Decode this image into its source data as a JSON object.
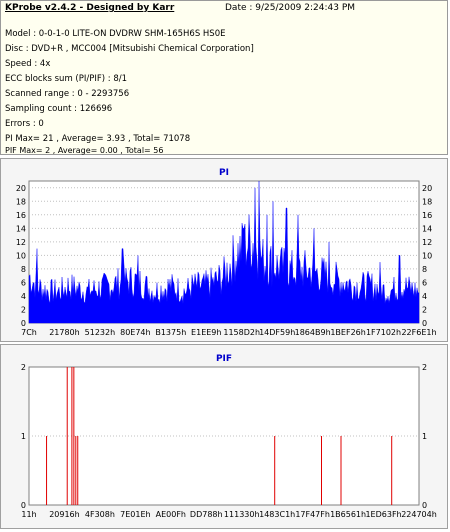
{
  "info": {
    "title": "KProbe v2.4.2 - Designed by Karr",
    "date": "Date : 9/25/2009 2:24:43 PM",
    "lines": [
      "Model : 0-0-1-0 LITE-ON DVDRW SHM-165H6S HS0E",
      "Disc : DVD+R , MCC004 [Mitsubishi Chemical Corporation]",
      "Speed : 4x",
      "ECC blocks sum (PI/PIF) : 8/1",
      "Scanned range : 0 - 2293756",
      "Sampling count : 126696",
      "Errors : 0",
      "PI Max= 21 , Average= 3.93 , Total= 71078",
      "PIF Max= 2 , Average= 0.00 , Total= 56"
    ]
  },
  "colors": {
    "pi_fill": "#0000ff",
    "pif_line": "#e00000",
    "title": "#0000cc"
  },
  "chart_data": [
    {
      "type": "area",
      "title": "PI",
      "ylim": [
        0,
        21
      ],
      "yticks": [
        0,
        2,
        4,
        6,
        8,
        10,
        12,
        14,
        16,
        18,
        20
      ],
      "xticks": [
        "7Ch",
        "21780h",
        "51232h",
        "80E74h",
        "B1375h",
        "E1EE9h",
        "1158D2h",
        "14DF59h",
        "1864B9h",
        "1BEF26h",
        "1F7102h",
        "22F6E1h"
      ],
      "profile": [
        [
          0,
          9
        ],
        [
          0.02,
          7
        ],
        [
          0.05,
          6
        ],
        [
          0.08,
          6
        ],
        [
          0.1,
          7
        ],
        [
          0.15,
          6
        ],
        [
          0.2,
          7
        ],
        [
          0.25,
          8
        ],
        [
          0.28,
          8
        ],
        [
          0.32,
          6
        ],
        [
          0.36,
          7
        ],
        [
          0.4,
          6
        ],
        [
          0.42,
          7
        ],
        [
          0.45,
          7
        ],
        [
          0.48,
          8
        ],
        [
          0.5,
          9
        ],
        [
          0.53,
          13
        ],
        [
          0.57,
          16
        ],
        [
          0.6,
          12
        ],
        [
          0.63,
          11
        ],
        [
          0.67,
          10
        ],
        [
          0.72,
          10
        ],
        [
          0.76,
          9
        ],
        [
          0.8,
          8
        ],
        [
          0.84,
          7
        ],
        [
          0.88,
          7
        ],
        [
          0.92,
          6
        ],
        [
          0.96,
          7
        ],
        [
          1.0,
          6
        ]
      ],
      "peaks": [
        [
          0.02,
          11
        ],
        [
          0.24,
          11
        ],
        [
          0.28,
          10
        ],
        [
          0.55,
          14
        ],
        [
          0.58,
          20
        ],
        [
          0.59,
          21
        ],
        [
          0.61,
          16
        ],
        [
          0.625,
          18
        ],
        [
          0.66,
          17
        ],
        [
          0.69,
          16
        ],
        [
          0.73,
          14
        ],
        [
          0.77,
          12
        ],
        [
          0.9,
          9
        ],
        [
          0.95,
          10
        ]
      ]
    },
    {
      "type": "bar",
      "title": "PIF",
      "ylim": [
        0,
        2
      ],
      "yticks": [
        0,
        1,
        2
      ],
      "xticks": [
        "11h",
        "20916h",
        "4F308h",
        "7E01Eh",
        "AE00Fh",
        "DD788h",
        "111330h",
        "1483C1h",
        "17F47Fh",
        "1B6561h",
        "1ED63Fh",
        "224704h"
      ],
      "spikes": [
        [
          0.045,
          1
        ],
        [
          0.098,
          2
        ],
        [
          0.11,
          2
        ],
        [
          0.115,
          2
        ],
        [
          0.12,
          1
        ],
        [
          0.125,
          1
        ],
        [
          0.63,
          1
        ],
        [
          0.75,
          1
        ],
        [
          0.8,
          1
        ],
        [
          0.93,
          1
        ]
      ]
    }
  ]
}
